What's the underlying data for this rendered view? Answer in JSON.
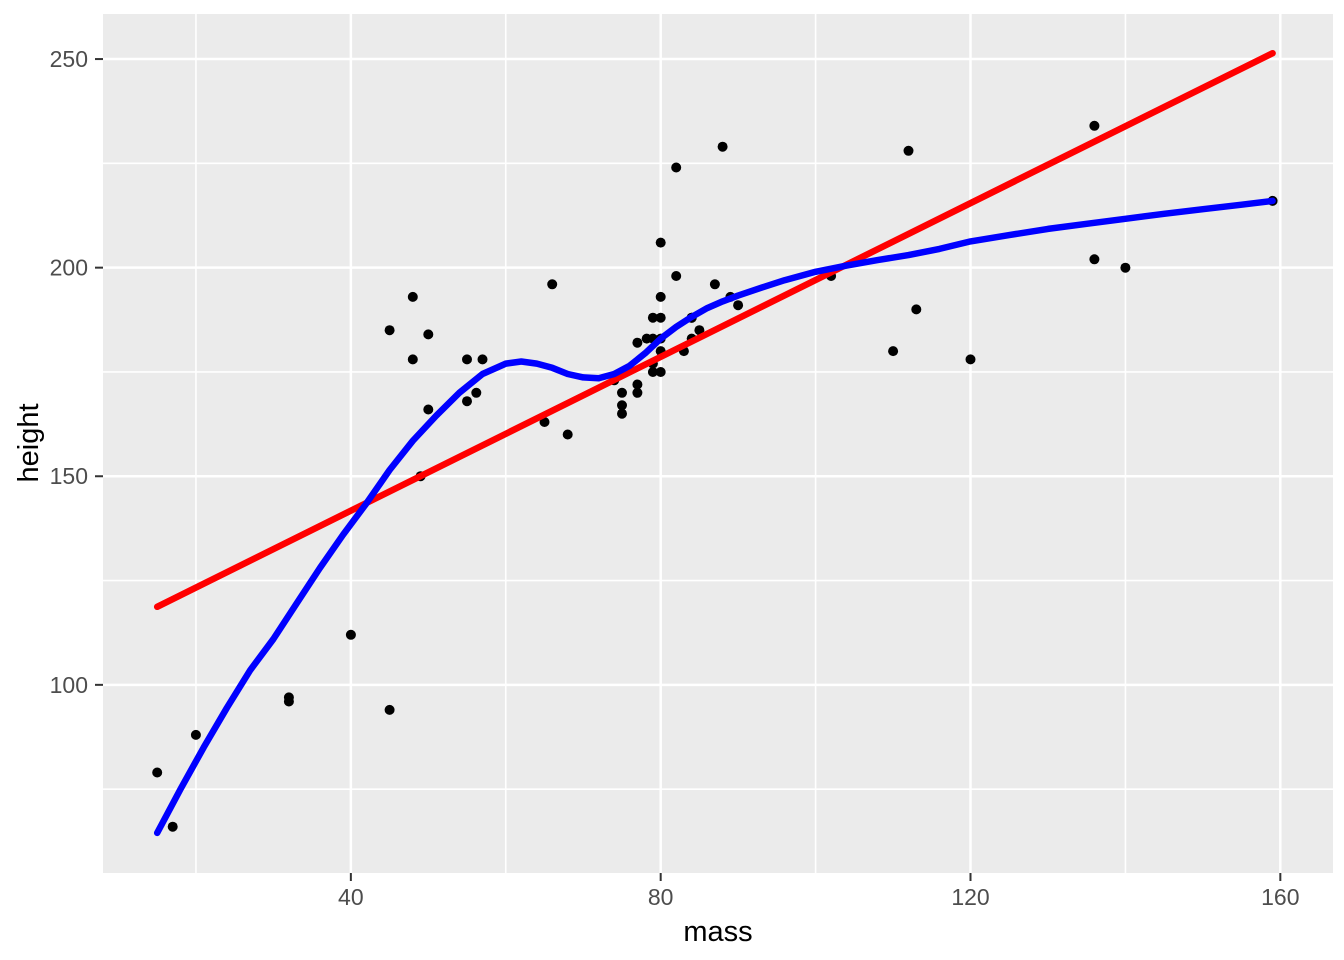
{
  "figure": {
    "background": "#FFFFFF",
    "panel_background": "#EBEBEB",
    "grid_color": "#FFFFFF",
    "tick_mark_color": "#333333",
    "tick_label_color": "#4D4D4D",
    "axis_title_color": "#000000"
  },
  "chart_data": {
    "type": "scatter",
    "title": "",
    "xlabel": "mass",
    "ylabel": "height",
    "legend": "none",
    "grid": true,
    "xlim": [
      8,
      166.8
    ],
    "ylim": [
      54.9,
      260.8
    ],
    "x_major_ticks": [
      40,
      80,
      120,
      160
    ],
    "x_minor_ticks": [
      20,
      60,
      100,
      140
    ],
    "y_major_ticks": [
      100,
      150,
      200,
      250
    ],
    "y_minor_ticks": [
      75,
      125,
      175,
      225
    ],
    "point_color": "#000000",
    "point_radius": 5,
    "points": [
      [
        15,
        79
      ],
      [
        17,
        66
      ],
      [
        20,
        88
      ],
      [
        32,
        96
      ],
      [
        32,
        97
      ],
      [
        40,
        112
      ],
      [
        45,
        94
      ],
      [
        45,
        185
      ],
      [
        48,
        178
      ],
      [
        48,
        193
      ],
      [
        49,
        150
      ],
      [
        50,
        166
      ],
      [
        50,
        184
      ],
      [
        55,
        168
      ],
      [
        55,
        178
      ],
      [
        56.2,
        170
      ],
      [
        57,
        178
      ],
      [
        65,
        163
      ],
      [
        66,
        196
      ],
      [
        68,
        160
      ],
      [
        74,
        173
      ],
      [
        75,
        165
      ],
      [
        75,
        167
      ],
      [
        75,
        170
      ],
      [
        77,
        170
      ],
      [
        77,
        172
      ],
      [
        77,
        182
      ],
      [
        78.2,
        183
      ],
      [
        79,
        175
      ],
      [
        79,
        177
      ],
      [
        79,
        183
      ],
      [
        79,
        188
      ],
      [
        80,
        175
      ],
      [
        80,
        180
      ],
      [
        80,
        183
      ],
      [
        80,
        188
      ],
      [
        80,
        193
      ],
      [
        80,
        206
      ],
      [
        82,
        198
      ],
      [
        82,
        224
      ],
      [
        83,
        180
      ],
      [
        84,
        183
      ],
      [
        84,
        188
      ],
      [
        84,
        188
      ],
      [
        85,
        185
      ],
      [
        87,
        196
      ],
      [
        88,
        229
      ],
      [
        89,
        193
      ],
      [
        90,
        191
      ],
      [
        102,
        198
      ],
      [
        110,
        180
      ],
      [
        112,
        228
      ],
      [
        113,
        190
      ],
      [
        120,
        178
      ],
      [
        136,
        202
      ],
      [
        136,
        234
      ],
      [
        140,
        200
      ],
      [
        159,
        216
      ]
    ],
    "series": [
      {
        "name": "linear-fit",
        "type": "line",
        "color": "#FF0000",
        "width": 6.5,
        "points": [
          [
            15,
            118.7
          ],
          [
            159,
            251.4
          ]
        ]
      },
      {
        "name": "loess-smooth",
        "type": "line",
        "color": "#0000FF",
        "width": 6.5,
        "points": [
          [
            15,
            64.5
          ],
          [
            18,
            75
          ],
          [
            21,
            85
          ],
          [
            24,
            94.5
          ],
          [
            27,
            103.5
          ],
          [
            30,
            111
          ],
          [
            33,
            119.5
          ],
          [
            36,
            128
          ],
          [
            39,
            136
          ],
          [
            42,
            143.5
          ],
          [
            45,
            151.5
          ],
          [
            48,
            158.5
          ],
          [
            51,
            164.5
          ],
          [
            54,
            170
          ],
          [
            57,
            174.5
          ],
          [
            60,
            177
          ],
          [
            62,
            177.5
          ],
          [
            64,
            177
          ],
          [
            66,
            176
          ],
          [
            68,
            174.5
          ],
          [
            70,
            173.7
          ],
          [
            72,
            173.5
          ],
          [
            74,
            174.5
          ],
          [
            76,
            176.5
          ],
          [
            78,
            179.5
          ],
          [
            80,
            183
          ],
          [
            82,
            185.8
          ],
          [
            84,
            188.2
          ],
          [
            86,
            190.3
          ],
          [
            88,
            191.9
          ],
          [
            90,
            193.3
          ],
          [
            93,
            195.2
          ],
          [
            96,
            197
          ],
          [
            100,
            199
          ],
          [
            104,
            200.5
          ],
          [
            108,
            201.8
          ],
          [
            112,
            203
          ],
          [
            116,
            204.5
          ],
          [
            120,
            206.3
          ],
          [
            125,
            207.8
          ],
          [
            130,
            209.3
          ],
          [
            135,
            210.5
          ],
          [
            140,
            211.7
          ],
          [
            145,
            212.9
          ],
          [
            150,
            214
          ],
          [
            155,
            215.1
          ],
          [
            159,
            216
          ]
        ]
      }
    ]
  }
}
